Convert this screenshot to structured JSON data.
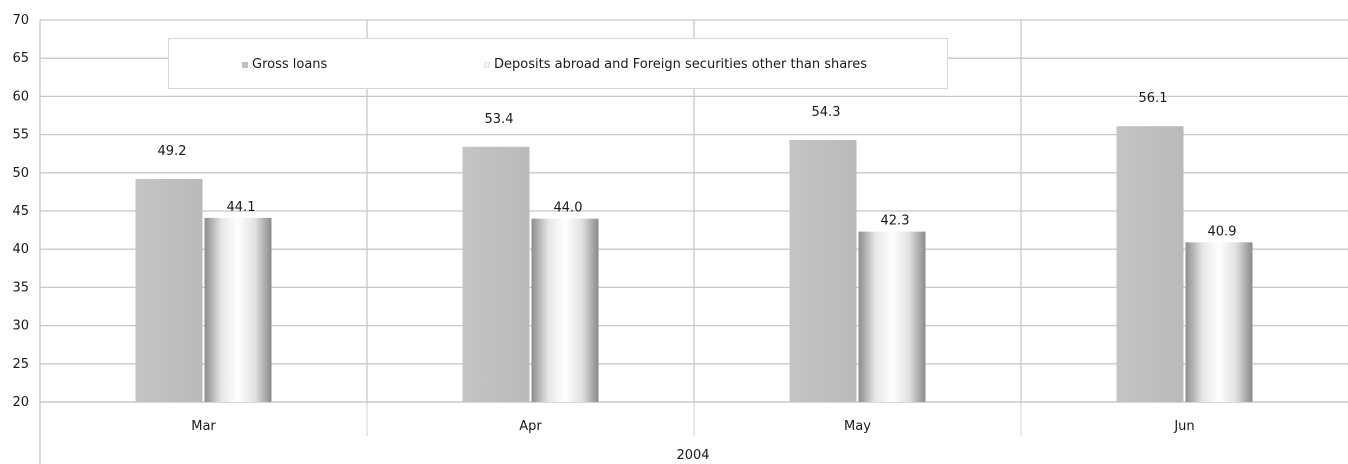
{
  "chart_data": {
    "type": "bar",
    "group_label": "2004",
    "categories": [
      "Mar",
      "Apr",
      "May",
      "Jun"
    ],
    "series": [
      {
        "name": "Gross loans",
        "values": [
          49.2,
          53.4,
          54.3,
          56.1
        ],
        "labels": [
          "49.2",
          "53.4",
          "54.3",
          "56.1"
        ],
        "color": "#c0c0c0"
      },
      {
        "name": "Deposits abroad and Foreign securities other than shares",
        "values": [
          44.1,
          44.0,
          42.3,
          40.9
        ],
        "labels": [
          "44.1",
          "44.0",
          "42.3",
          "40.9"
        ],
        "color": "#d8d8d8"
      }
    ],
    "ylim": [
      20,
      70
    ],
    "yticks": [
      "20",
      "25",
      "30",
      "35",
      "40",
      "45",
      "50",
      "55",
      "60",
      "65",
      "70"
    ],
    "grid": true,
    "legend_position": "top"
  }
}
